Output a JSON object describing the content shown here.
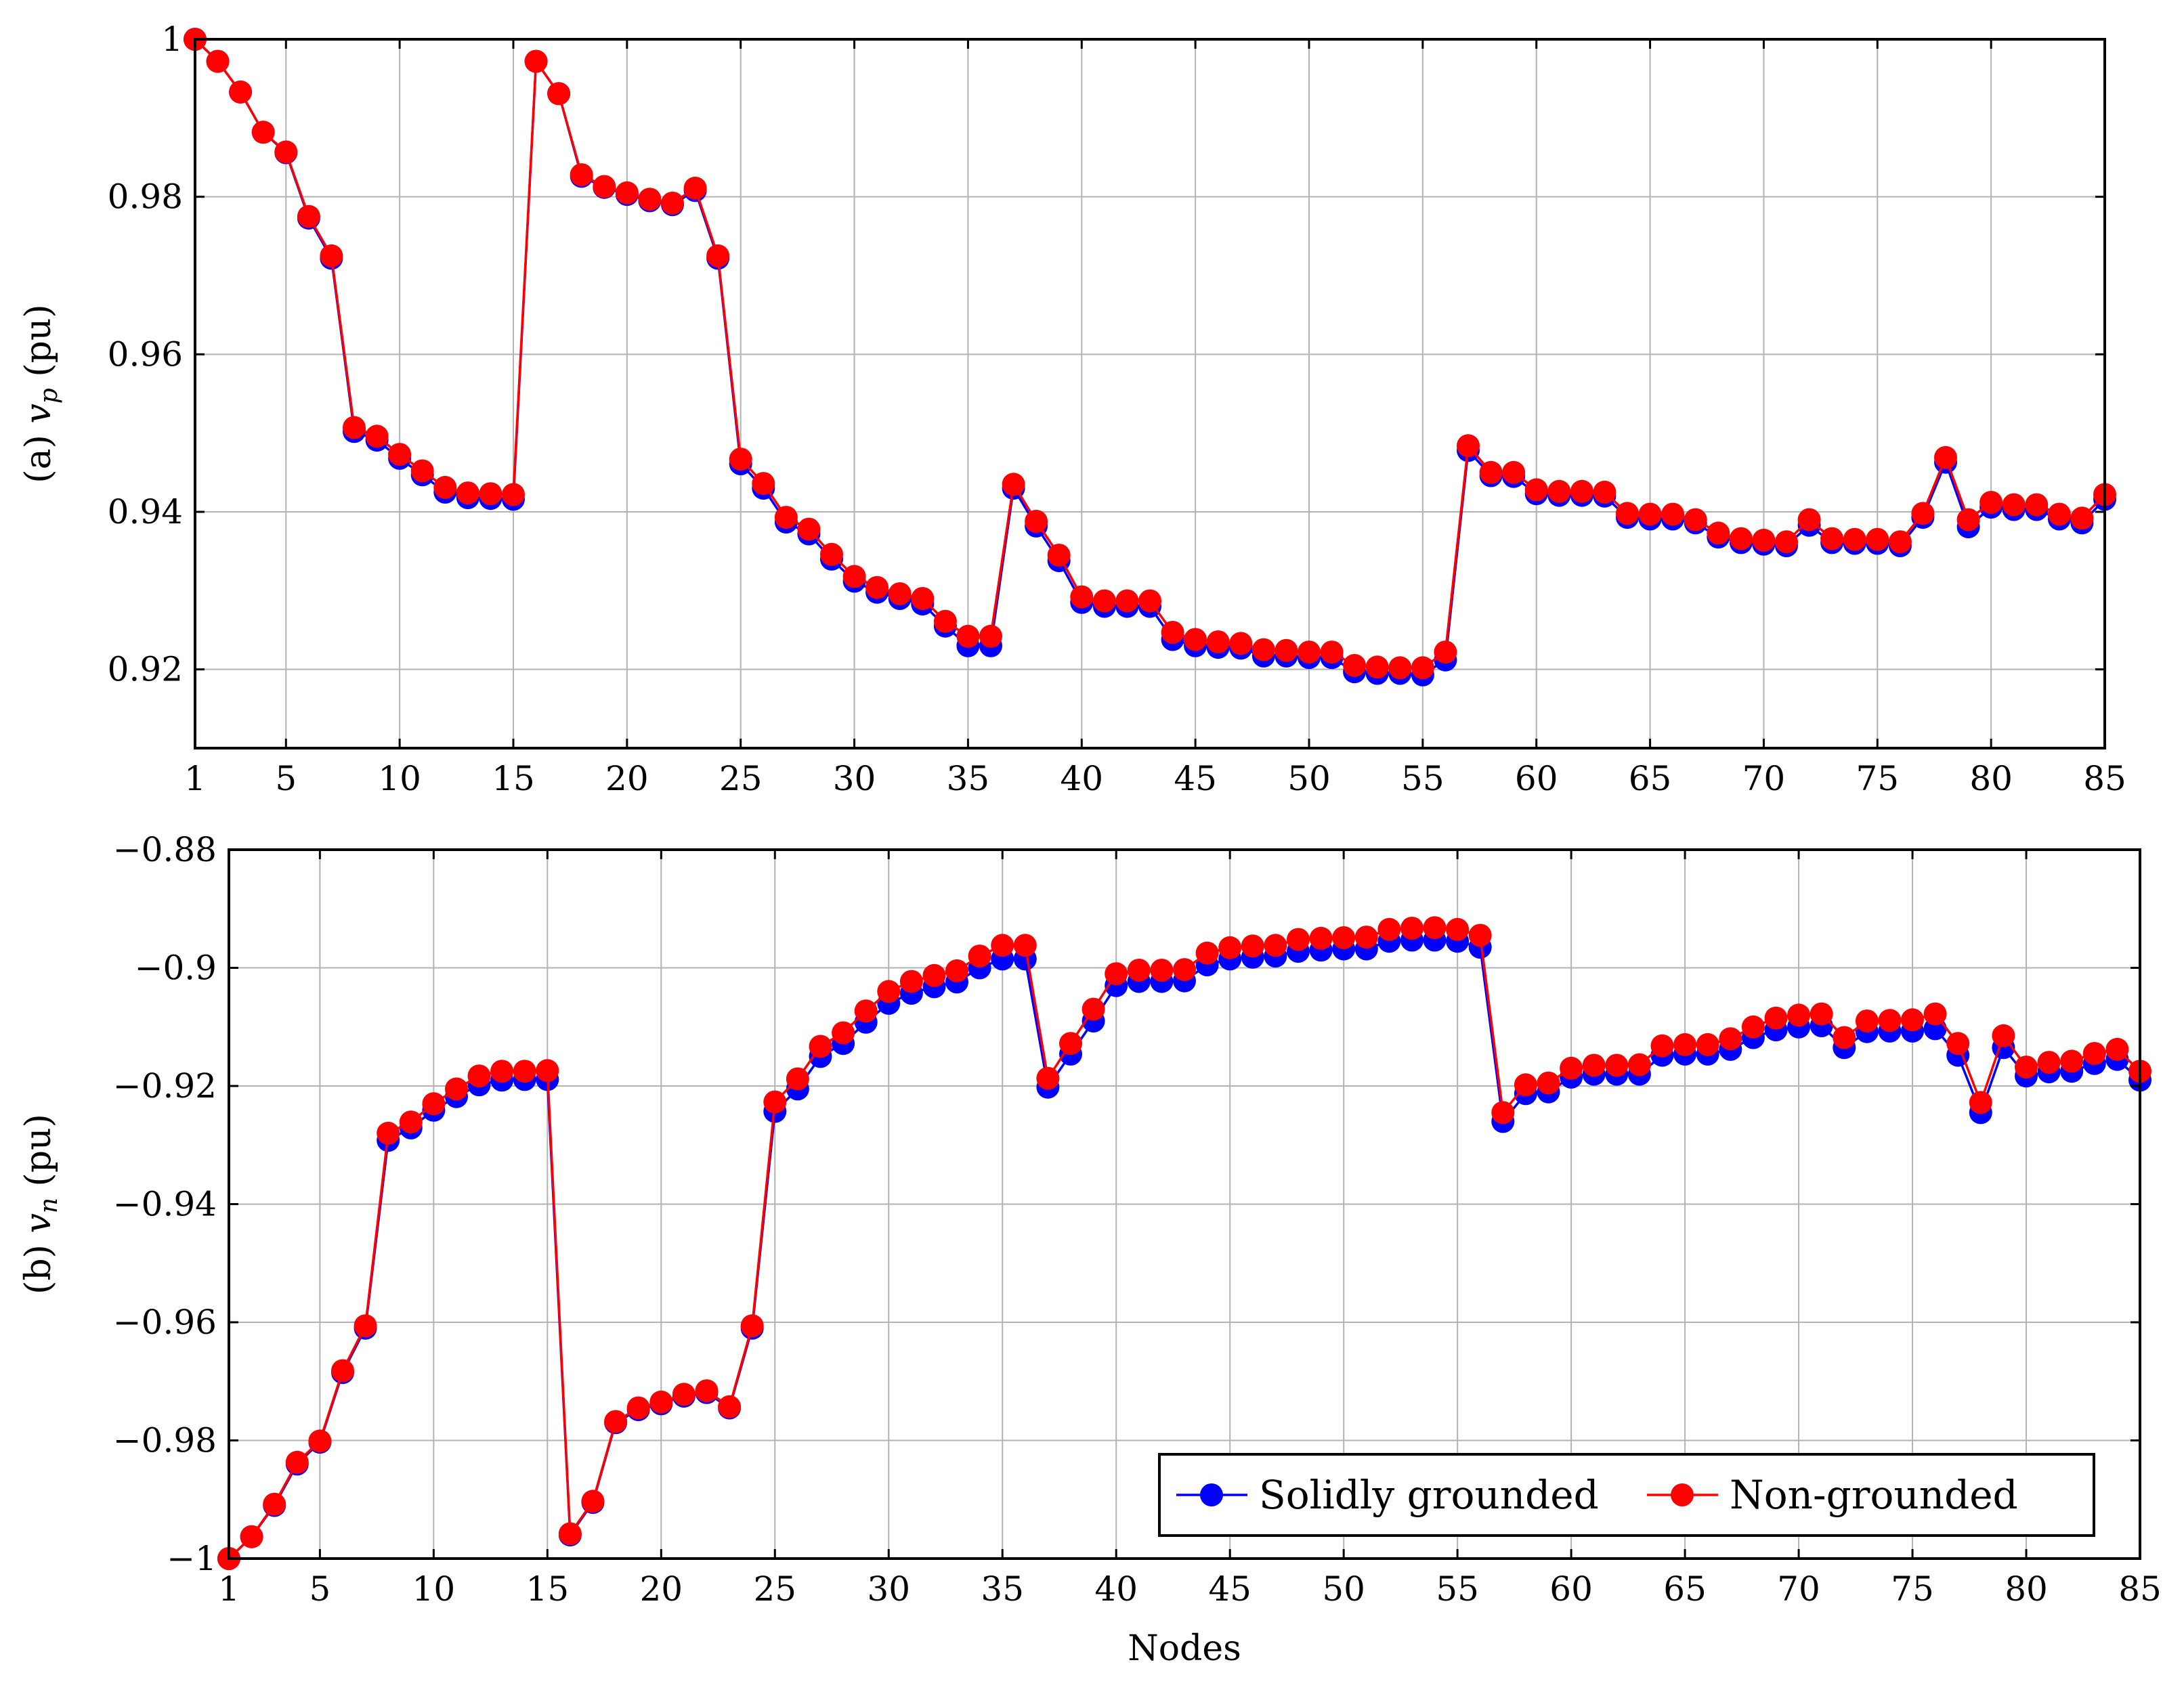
{
  "chart_data": [
    {
      "type": "line",
      "title": "",
      "xlabel": "",
      "ylabel": "(a) v_p (pu)",
      "ylabel_parts": {
        "prefix": "(a) ",
        "var": "v",
        "sub": "p",
        "suffix": " (pu)"
      },
      "xlim": [
        1,
        85
      ],
      "ylim": [
        0.91,
        1.0
      ],
      "xticks": [
        1,
        5,
        10,
        15,
        20,
        25,
        30,
        35,
        40,
        45,
        50,
        55,
        60,
        65,
        70,
        75,
        80,
        85
      ],
      "yticks": [
        0.92,
        0.94,
        0.96,
        0.98,
        1.0
      ],
      "ytick_labels": [
        "0.92",
        "0.94",
        "0.96",
        "0.98",
        "1"
      ],
      "grid": true,
      "series": [
        {
          "name": "Solidly grounded",
          "color": "#0000ff",
          "values": [
            1.0,
            0.9972,
            0.9933,
            0.9882,
            0.9856,
            0.9773,
            0.9722,
            0.9502,
            0.9491,
            0.9468,
            0.9447,
            0.9425,
            0.9418,
            0.9417,
            0.9416,
            0.9972,
            0.9931,
            0.9826,
            0.9812,
            0.9803,
            0.9795,
            0.979,
            0.9808,
            0.9722,
            0.9461,
            0.943,
            0.9387,
            0.9372,
            0.934,
            0.9312,
            0.9298,
            0.929,
            0.9283,
            0.9255,
            0.923,
            0.923,
            0.943,
            0.9382,
            0.9338,
            0.9285,
            0.928,
            0.928,
            0.928,
            0.9238,
            0.923,
            0.9228,
            0.9227,
            0.9217,
            0.9217,
            0.9215,
            0.9215,
            0.9197,
            0.9195,
            0.9195,
            0.9193,
            0.9212,
            0.9478,
            0.9446,
            0.9445,
            0.9423,
            0.9421,
            0.9421,
            0.942,
            0.9393,
            0.9391,
            0.9391,
            0.9386,
            0.9368,
            0.9361,
            0.9359,
            0.9357,
            0.9383,
            0.9361,
            0.936,
            0.936,
            0.9357,
            0.9393,
            0.9463,
            0.9381,
            0.9406,
            0.9403,
            0.9403,
            0.9391,
            0.9386,
            0.9416
          ]
        },
        {
          "name": "Non-grounded",
          "color": "#ff0000",
          "values": [
            1.0,
            0.9972,
            0.9933,
            0.9882,
            0.9857,
            0.9775,
            0.9725,
            0.9507,
            0.9496,
            0.9473,
            0.9452,
            0.9431,
            0.9424,
            0.9423,
            0.9422,
            0.9972,
            0.9931,
            0.9828,
            0.9813,
            0.9805,
            0.9797,
            0.9792,
            0.9811,
            0.9725,
            0.9467,
            0.9436,
            0.9393,
            0.9378,
            0.9346,
            0.9318,
            0.9304,
            0.9296,
            0.929,
            0.9261,
            0.9242,
            0.9242,
            0.9435,
            0.9388,
            0.9345,
            0.9292,
            0.9287,
            0.9287,
            0.9287,
            0.9247,
            0.9238,
            0.9235,
            0.9233,
            0.9225,
            0.9224,
            0.9222,
            0.9222,
            0.9205,
            0.9203,
            0.9202,
            0.9202,
            0.9222,
            0.9484,
            0.945,
            0.945,
            0.9428,
            0.9426,
            0.9426,
            0.9425,
            0.9398,
            0.9397,
            0.9397,
            0.939,
            0.9373,
            0.9366,
            0.9364,
            0.9362,
            0.939,
            0.9366,
            0.9365,
            0.9365,
            0.9362,
            0.9398,
            0.9469,
            0.939,
            0.9412,
            0.9409,
            0.9409,
            0.9397,
            0.9392,
            0.9422
          ]
        }
      ]
    },
    {
      "type": "line",
      "title": "",
      "xlabel": "Nodes",
      "ylabel": "(b) v_n (pu)",
      "ylabel_parts": {
        "prefix": "(b) ",
        "var": "v",
        "sub": "n",
        "suffix": " (pu)"
      },
      "xlim": [
        1,
        85
      ],
      "ylim": [
        -1.0,
        -0.88
      ],
      "xticks": [
        1,
        5,
        10,
        15,
        20,
        25,
        30,
        35,
        40,
        45,
        50,
        55,
        60,
        65,
        70,
        75,
        80,
        85
      ],
      "yticks": [
        -1.0,
        -0.98,
        -0.96,
        -0.94,
        -0.92,
        -0.9,
        -0.88
      ],
      "ytick_labels": [
        "−1",
        "−0.98",
        "−0.96",
        "−0.94",
        "−0.92",
        "−0.9",
        "−0.88"
      ],
      "grid": true,
      "legend": {
        "position": "bottom-right",
        "orientation": "horizontal"
      },
      "series": [
        {
          "name": "Solidly grounded",
          "color": "#0000ff",
          "values": [
            -1.0,
            -0.9963,
            -0.991,
            -0.984,
            -0.9803,
            -0.9685,
            -0.961,
            -0.9292,
            -0.9271,
            -0.9241,
            -0.9218,
            -0.9198,
            -0.919,
            -0.9189,
            -0.9189,
            -0.996,
            -0.9905,
            -0.977,
            -0.9748,
            -0.9738,
            -0.9725,
            -0.9719,
            -0.9745,
            -0.961,
            -0.9243,
            -0.9205,
            -0.915,
            -0.9128,
            -0.9092,
            -0.906,
            -0.9043,
            -0.9032,
            -0.9024,
            -0.9,
            -0.8985,
            -0.8985,
            -0.9202,
            -0.9146,
            -0.909,
            -0.903,
            -0.9023,
            -0.9023,
            -0.9022,
            -0.8995,
            -0.8985,
            -0.8982,
            -0.898,
            -0.8972,
            -0.897,
            -0.8968,
            -0.8968,
            -0.8955,
            -0.8953,
            -0.8953,
            -0.8955,
            -0.8965,
            -0.926,
            -0.9213,
            -0.921,
            -0.9185,
            -0.918,
            -0.918,
            -0.918,
            -0.9148,
            -0.9146,
            -0.9146,
            -0.9138,
            -0.9118,
            -0.9105,
            -0.91,
            -0.9098,
            -0.9135,
            -0.9108,
            -0.9107,
            -0.9107,
            -0.9103,
            -0.9148,
            -0.9245,
            -0.9135,
            -0.9183,
            -0.9176,
            -0.9175,
            -0.9162,
            -0.9155,
            -0.919
          ]
        },
        {
          "name": "Non-grounded",
          "color": "#ff0000",
          "values": [
            -1.0,
            -0.9963,
            -0.9908,
            -0.9837,
            -0.9801,
            -0.9682,
            -0.9606,
            -0.928,
            -0.9261,
            -0.923,
            -0.9205,
            -0.9183,
            -0.9175,
            -0.9175,
            -0.9174,
            -0.9958,
            -0.9903,
            -0.9768,
            -0.9745,
            -0.9735,
            -0.9722,
            -0.9716,
            -0.9743,
            -0.9606,
            -0.9227,
            -0.9188,
            -0.9133,
            -0.911,
            -0.9073,
            -0.904,
            -0.9023,
            -0.9013,
            -0.9005,
            -0.898,
            -0.8962,
            -0.8962,
            -0.9187,
            -0.9128,
            -0.907,
            -0.901,
            -0.9004,
            -0.9004,
            -0.9003,
            -0.8975,
            -0.8966,
            -0.8963,
            -0.8962,
            -0.8952,
            -0.895,
            -0.8949,
            -0.8948,
            -0.8935,
            -0.8933,
            -0.8932,
            -0.8935,
            -0.8945,
            -0.9245,
            -0.9198,
            -0.9195,
            -0.917,
            -0.9165,
            -0.9165,
            -0.9164,
            -0.9132,
            -0.913,
            -0.913,
            -0.912,
            -0.91,
            -0.9085,
            -0.908,
            -0.9078,
            -0.9118,
            -0.909,
            -0.9089,
            -0.9088,
            -0.9078,
            -0.9128,
            -0.9228,
            -0.9115,
            -0.9168,
            -0.916,
            -0.9158,
            -0.9145,
            -0.9138,
            -0.9175
          ]
        }
      ]
    }
  ]
}
